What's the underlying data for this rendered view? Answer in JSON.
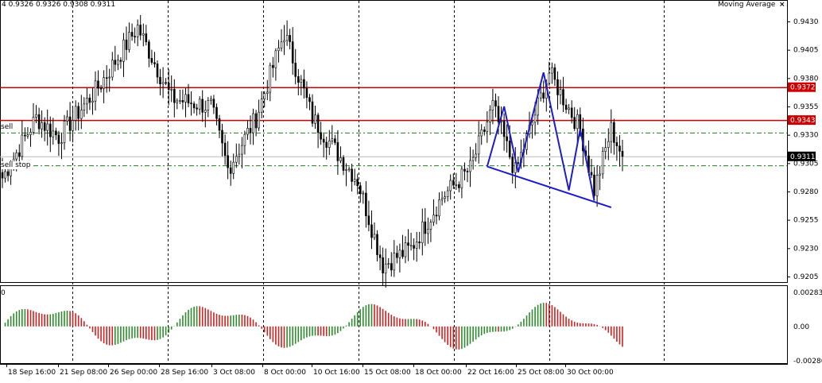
{
  "header": {
    "ohlc": "4  0.9326 0.9326 0.9308 0.9311",
    "indicator_name": "Moving Average",
    "close_glyph": "×"
  },
  "levels": {
    "sell_label": "sell",
    "sell_stop_label": "sell stop",
    "red_level_1": "0.9372",
    "red_level_2": "0.9343",
    "current_price": "0.9311"
  },
  "osc": {
    "label": "0"
  },
  "colors": {
    "bull": "#2e8b2e",
    "bear": "#cc2222",
    "wick": "#000000",
    "red_line": "#cc0000",
    "green_dash": "#208020",
    "pattern": "#1c1cc8",
    "grid": "#000000",
    "price_box": "#000000"
  },
  "chart_data": [
    {
      "type": "candlestick",
      "title": "",
      "ylim": [
        0.9195,
        0.945
      ],
      "y_ticks": [
        "0.9430",
        "0.9405",
        "0.9380",
        "0.9355",
        "0.9330",
        "0.9305",
        "0.9280",
        "0.9255",
        "0.9230",
        "0.9205"
      ],
      "x_ticks": [
        "18 Sep 16:00",
        "21 Sep 08:00",
        "26 Sep 00:00",
        "28 Sep 16:00",
        "3 Oct 08:00",
        "8 Oct 00:00",
        "10 Oct 16:00",
        "15 Oct 08:00",
        "18 Oct 00:00",
        "22 Oct 16:00",
        "25 Oct 08:00",
        "30 Oct 00:00"
      ],
      "horizontal_lines": [
        {
          "price": 0.9372,
          "style": "solid",
          "color": "red"
        },
        {
          "price": 0.9343,
          "style": "solid",
          "color": "red"
        },
        {
          "price": 0.9332,
          "style": "dash-dot",
          "color": "green",
          "label": "sell"
        },
        {
          "price": 0.9311,
          "style": "solid",
          "color": "grey"
        },
        {
          "price": 0.9303,
          "style": "dash-dot",
          "color": "green",
          "label": "sell stop"
        }
      ],
      "pattern_lines": [
        [
          [
            0.9302,
            0.9355,
            0.9297,
            0.9385,
            0.9281,
            0.9335,
            0.9272
          ]
        ],
        [
          [
            0.9302,
            0.9272
          ]
        ]
      ],
      "price_anchors": [
        {
          "bar": 0,
          "close": 0.9292
        },
        {
          "bar": 12,
          "close": 0.9345
        },
        {
          "bar": 20,
          "close": 0.9328
        },
        {
          "bar": 34,
          "close": 0.9372
        },
        {
          "bar": 48,
          "close": 0.9425
        },
        {
          "bar": 60,
          "close": 0.9362
        },
        {
          "bar": 74,
          "close": 0.9355
        },
        {
          "bar": 80,
          "close": 0.93
        },
        {
          "bar": 90,
          "close": 0.9345
        },
        {
          "bar": 100,
          "close": 0.942
        },
        {
          "bar": 110,
          "close": 0.9345
        },
        {
          "bar": 120,
          "close": 0.931
        },
        {
          "bar": 126,
          "close": 0.929
        },
        {
          "bar": 135,
          "close": 0.9215
        },
        {
          "bar": 145,
          "close": 0.923
        },
        {
          "bar": 156,
          "close": 0.9275
        },
        {
          "bar": 166,
          "close": 0.93
        },
        {
          "bar": 174,
          "close": 0.9355
        },
        {
          "bar": 182,
          "close": 0.9297
        },
        {
          "bar": 194,
          "close": 0.9385
        },
        {
          "bar": 205,
          "close": 0.9335
        },
        {
          "bar": 210,
          "close": 0.9281
        },
        {
          "bar": 216,
          "close": 0.9335
        },
        {
          "bar": 220,
          "close": 0.9311
        }
      ]
    },
    {
      "type": "bar",
      "title": "",
      "ylim": [
        -0.00286,
        0.00283
      ],
      "y_ticks": [
        "0.00283",
        "0.00",
        "-0.00286"
      ],
      "note": "oscillator histogram, green = rising, red = falling"
    }
  ]
}
